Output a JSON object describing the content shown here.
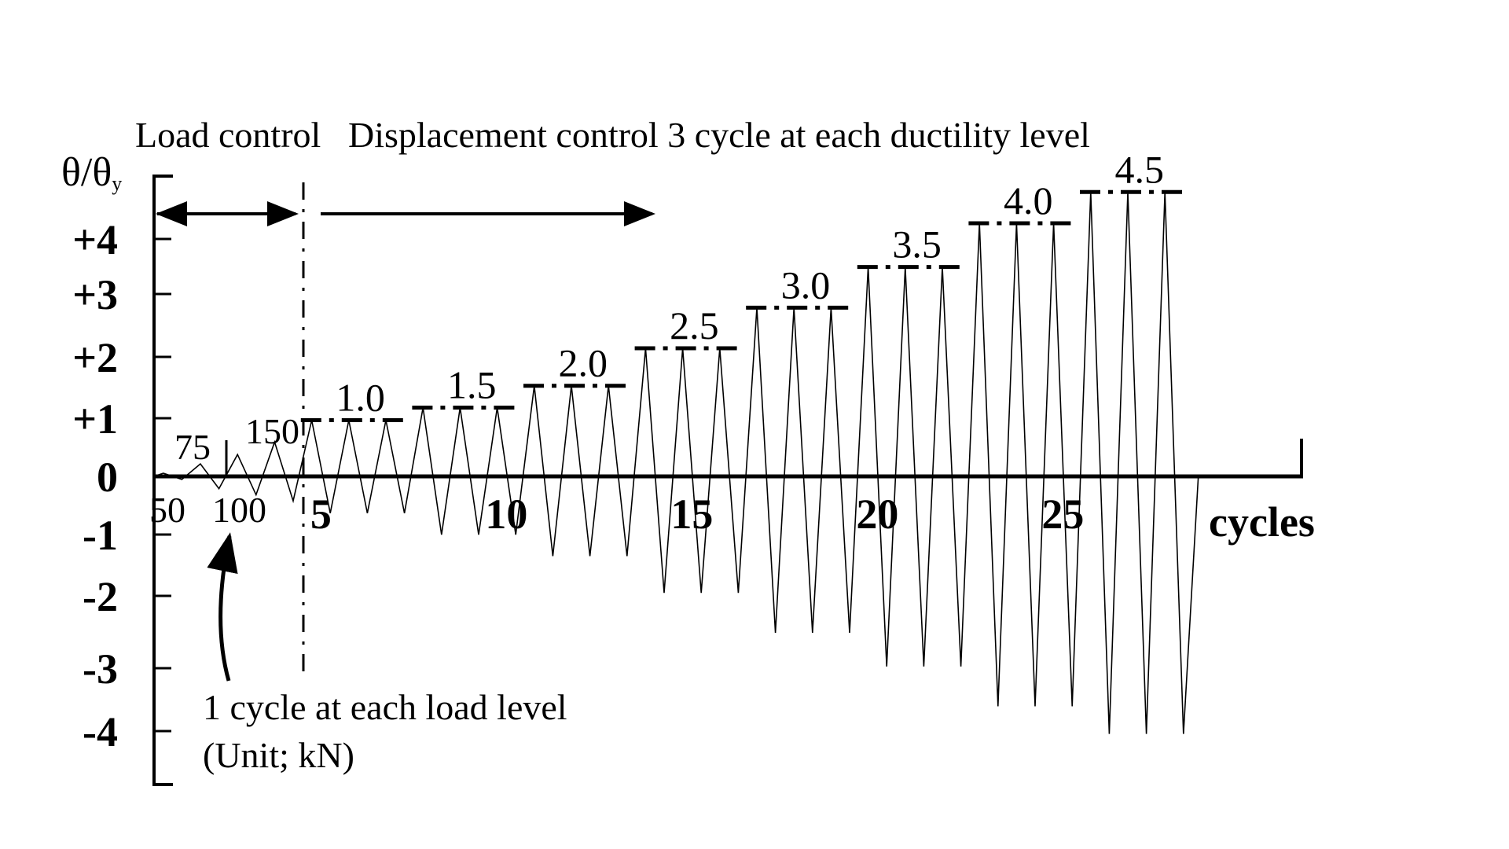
{
  "chart_data": {
    "type": "line",
    "title": "",
    "ylabel": "θ/θ",
    "ylabel_subscript": "y",
    "xlabel": "cycles",
    "phase_labels": {
      "load": "Load control",
      "displacement": "Displacement control 3 cycle at each ductility level"
    },
    "y_ticks": [
      "+4",
      "+3",
      "+2",
      "+1",
      "0",
      "-1",
      "-2",
      "-3",
      "-4"
    ],
    "x_ticks": [
      "5",
      "10",
      "15",
      "20",
      "25"
    ],
    "load_levels": [
      "50",
      "75",
      "100",
      "150"
    ],
    "load_note": [
      "1 cycle at each load level",
      "(Unit; kN)"
    ],
    "ductility_levels": [
      {
        "label": "1.0",
        "peak": 0.9,
        "trough": -0.6
      },
      {
        "label": "1.5",
        "peak": 1.1,
        "trough": -0.95
      },
      {
        "label": "2.0",
        "peak": 1.45,
        "trough": -1.3
      },
      {
        "label": "2.5",
        "peak": 2.05,
        "trough": -1.9
      },
      {
        "label": "3.0",
        "peak": 2.7,
        "trough": -2.55
      },
      {
        "label": "3.5",
        "peak": 3.35,
        "trough": -3.1
      },
      {
        "label": "4.0",
        "peak": 4.05,
        "trough": -3.75
      },
      {
        "label": "4.5",
        "peak": 4.55,
        "trough": -4.2
      }
    ],
    "load_cycles": [
      {
        "peak": 0.05,
        "trough": -0.05
      },
      {
        "peak": 0.2,
        "trough": -0.2
      },
      {
        "peak": 0.35,
        "trough": -0.3
      },
      {
        "peak": 0.55,
        "trough": -0.4
      }
    ],
    "ylim": [
      -4.9,
      4.9
    ],
    "xlim": [
      0,
      31.5
    ],
    "grid": false,
    "legend": "none"
  }
}
